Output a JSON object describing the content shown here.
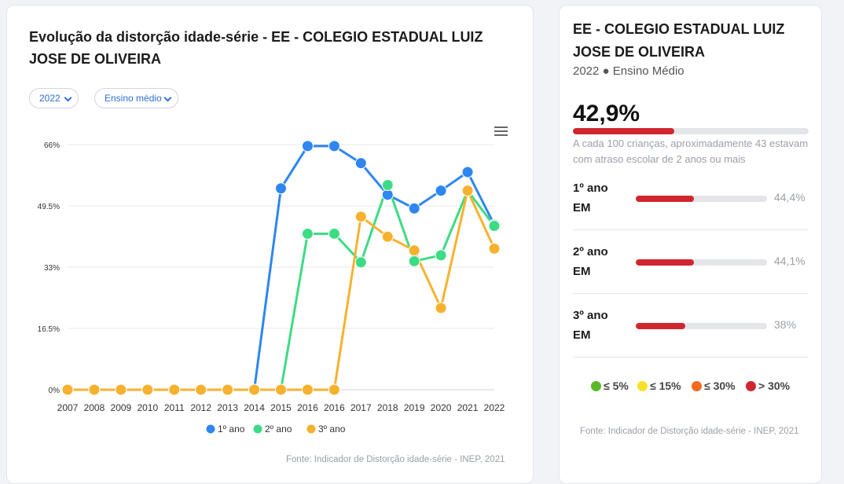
{
  "chart_card": {
    "title": "Evolução da distorção idade-série - EE - COLEGIO ESTADUAL LUIZ JOSE DE OLIVEIRA",
    "year_select": "2022",
    "level_select": "Ensino médio",
    "source": "Fonte: Indicador de Distorção idade-série - INEP, 2021"
  },
  "chart_data": {
    "type": "line",
    "title": "Evolução da distorção idade-série - EE - COLEGIO ESTADUAL LUIZ JOSE DE OLIVEIRA",
    "x": [
      "2007",
      "2008",
      "2009",
      "2010",
      "2011",
      "2012",
      "2013",
      "2014",
      "2015",
      "2016",
      "2016",
      "2017",
      "2018",
      "2019",
      "2020",
      "2021",
      "2022"
    ],
    "y_ticks": [
      "0%",
      "16.5%",
      "33%",
      "49.5%",
      "66%"
    ],
    "ylim": [
      0,
      66
    ],
    "grid": true,
    "legend_position": "bottom",
    "series": [
      {
        "name": "1º ano",
        "color": "#2e86f0",
        "values": [
          0,
          0,
          0,
          0,
          0,
          0,
          0,
          0,
          54.2,
          65.6,
          65.6,
          61.0,
          52.5,
          48.8,
          53.6,
          58.6,
          44.4
        ]
      },
      {
        "name": "2º ano",
        "color": "#3ddc84",
        "values": [
          0,
          0,
          0,
          0,
          0,
          0,
          0,
          0,
          0,
          42.0,
          42.0,
          34.3,
          55.1,
          34.6,
          36.2,
          53.6,
          44.1
        ]
      },
      {
        "name": "3º ano",
        "color": "#f6b22f",
        "values": [
          0,
          0,
          0,
          0,
          0,
          0,
          0,
          0,
          0,
          0,
          0,
          46.6,
          41.2,
          37.5,
          22.0,
          53.6,
          38.0
        ]
      }
    ]
  },
  "info_card": {
    "school_name": "EE - COLEGIO ESTADUAL LUIZ JOSE DE OLIVEIRA",
    "subline": "2022 ● Ensino Médio",
    "value": "42,9%",
    "value_fraction": 0.429,
    "description": "A cada 100 crianças, aproximadamente 43 estavam com atraso escolar de 2 anos ou mais",
    "grades": [
      {
        "label": "1º ano EM",
        "value": "44,4%",
        "fraction": 0.444
      },
      {
        "label": "2º ano EM",
        "value": "44,1%",
        "fraction": 0.441
      },
      {
        "label": "3º ano EM",
        "value": "38%",
        "fraction": 0.38
      }
    ],
    "scale": [
      {
        "label": "≤ 5%",
        "color": "#5cb82b"
      },
      {
        "label": "≤ 15%",
        "color": "#f5e12a"
      },
      {
        "label": "≤ 30%",
        "color": "#f26a1f"
      },
      {
        "label": "> 30%",
        "color": "#d0262f"
      }
    ],
    "source": "Fonte: Indicador de Distorção idade-série - INEP, 2021"
  }
}
